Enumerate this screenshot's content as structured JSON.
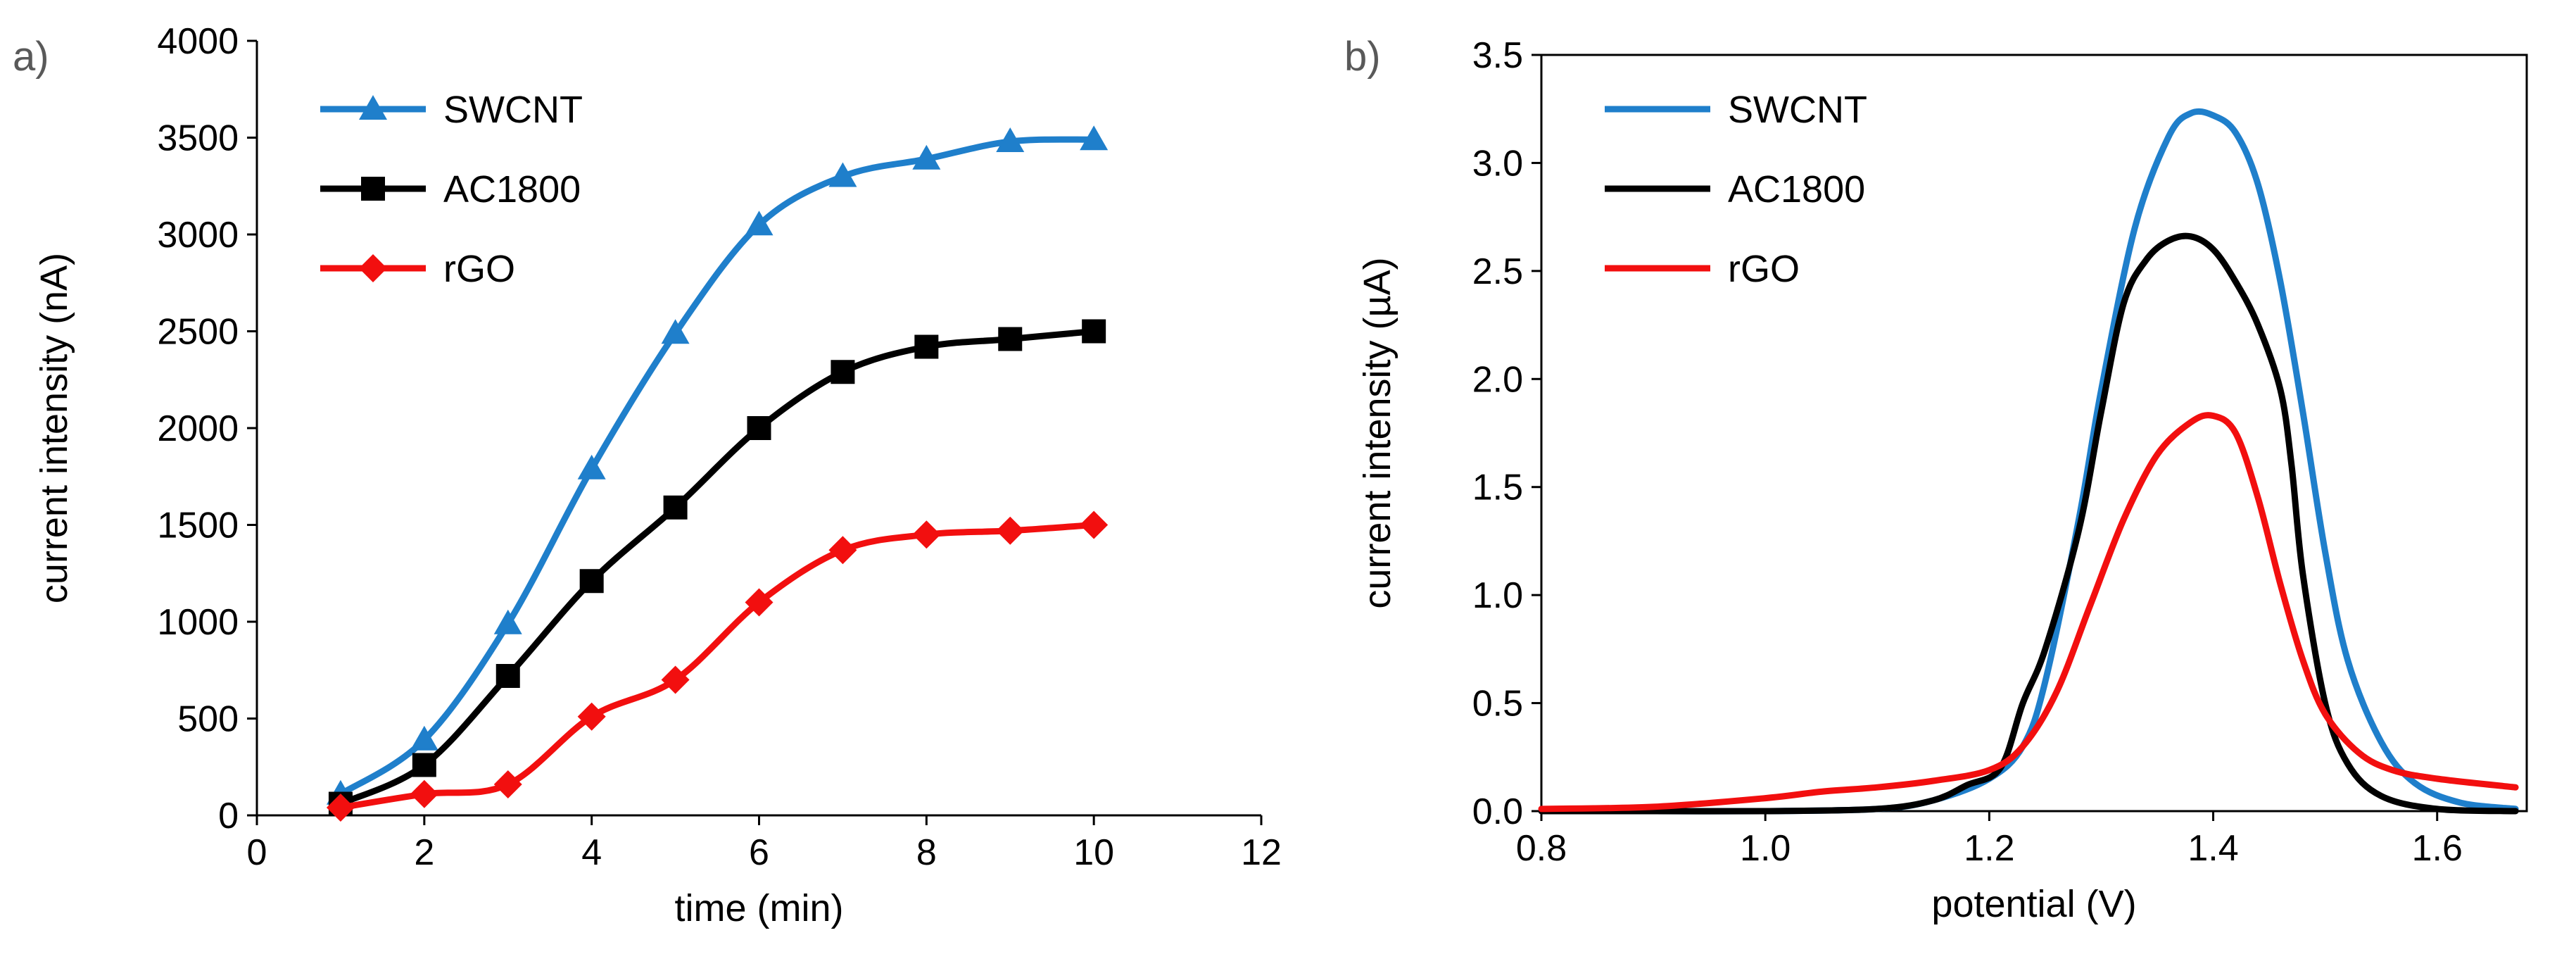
{
  "panel_labels": {
    "a": "a)",
    "b": "b)"
  },
  "chart_data": [
    {
      "id": "a",
      "type": "line",
      "xlabel": "time  (min)",
      "ylabel": "current intensity (nA)",
      "xlim": [
        0,
        12
      ],
      "ylim": [
        0,
        4000
      ],
      "xticks": [
        0,
        2,
        4,
        6,
        8,
        10,
        12
      ],
      "yticks": [
        0,
        500,
        1000,
        1500,
        2000,
        2500,
        3000,
        3500,
        4000
      ],
      "grid": false,
      "legend": "top-left",
      "x": [
        1,
        2,
        3,
        4,
        5,
        6,
        7,
        8,
        9,
        10
      ],
      "series": [
        {
          "name": "SWCNT",
          "color": "#1F7FCB",
          "marker": "triangle",
          "values": [
            110,
            390,
            990,
            1790,
            2490,
            3050,
            3300,
            3390,
            3480,
            3490
          ]
        },
        {
          "name": "AC1800",
          "color": "#000000",
          "marker": "square",
          "values": [
            60,
            260,
            720,
            1210,
            1590,
            2000,
            2290,
            2420,
            2460,
            2500
          ]
        },
        {
          "name": "rGO",
          "color": "#F20F0F",
          "marker": "diamond",
          "values": [
            40,
            110,
            160,
            510,
            700,
            1100,
            1370,
            1450,
            1470,
            1500
          ]
        }
      ]
    },
    {
      "id": "b",
      "type": "line",
      "xlabel": "potential  (V)",
      "ylabel": "current intensity (µA)",
      "xlim": [
        0.8,
        1.68
      ],
      "ylim": [
        0,
        3.5
      ],
      "xticks": [
        "0.8",
        "1.0",
        "1.2",
        "1.4",
        "1.6"
      ],
      "yticks": [
        "0.0",
        "0.5",
        "1.0",
        "1.5",
        "2.0",
        "2.5",
        "3.0",
        "3.5"
      ],
      "grid": false,
      "legend": "top-left",
      "series": [
        {
          "name": "SWCNT",
          "color": "#1F7FCB",
          "x": [
            0.8,
            0.9,
            1.0,
            1.1,
            1.15,
            1.2,
            1.23,
            1.25,
            1.28,
            1.3,
            1.33,
            1.36,
            1.38,
            1.4,
            1.42,
            1.44,
            1.46,
            1.48,
            1.5,
            1.52,
            1.55,
            1.58,
            1.62,
            1.67
          ],
          "y": [
            0.0,
            0.0,
            0.0,
            0.01,
            0.05,
            0.15,
            0.3,
            0.6,
            1.35,
            1.95,
            2.7,
            3.12,
            3.23,
            3.22,
            3.14,
            2.9,
            2.45,
            1.85,
            1.2,
            0.7,
            0.32,
            0.13,
            0.04,
            0.01
          ]
        },
        {
          "name": "AC1800",
          "color": "#000000",
          "x": [
            0.8,
            0.9,
            1.0,
            1.1,
            1.15,
            1.18,
            1.21,
            1.23,
            1.25,
            1.28,
            1.3,
            1.32,
            1.34,
            1.36,
            1.38,
            1.4,
            1.42,
            1.44,
            1.46,
            1.47,
            1.48,
            1.5,
            1.52,
            1.55,
            1.6,
            1.67
          ],
          "y": [
            0.0,
            0.0,
            0.0,
            0.01,
            0.05,
            0.12,
            0.2,
            0.5,
            0.75,
            1.3,
            1.85,
            2.35,
            2.55,
            2.64,
            2.66,
            2.6,
            2.45,
            2.25,
            1.95,
            1.6,
            1.1,
            0.5,
            0.22,
            0.07,
            0.01,
            0.0
          ]
        },
        {
          "name": "rGO",
          "color": "#F20F0F",
          "x": [
            0.8,
            0.9,
            1.0,
            1.05,
            1.1,
            1.15,
            1.2,
            1.23,
            1.26,
            1.29,
            1.32,
            1.35,
            1.38,
            1.4,
            1.42,
            1.44,
            1.46,
            1.48,
            1.5,
            1.53,
            1.56,
            1.6,
            1.67
          ],
          "y": [
            0.01,
            0.02,
            0.06,
            0.09,
            0.11,
            0.14,
            0.19,
            0.3,
            0.55,
            0.95,
            1.35,
            1.65,
            1.8,
            1.83,
            1.75,
            1.45,
            1.05,
            0.7,
            0.45,
            0.27,
            0.19,
            0.15,
            0.11
          ]
        }
      ]
    }
  ]
}
